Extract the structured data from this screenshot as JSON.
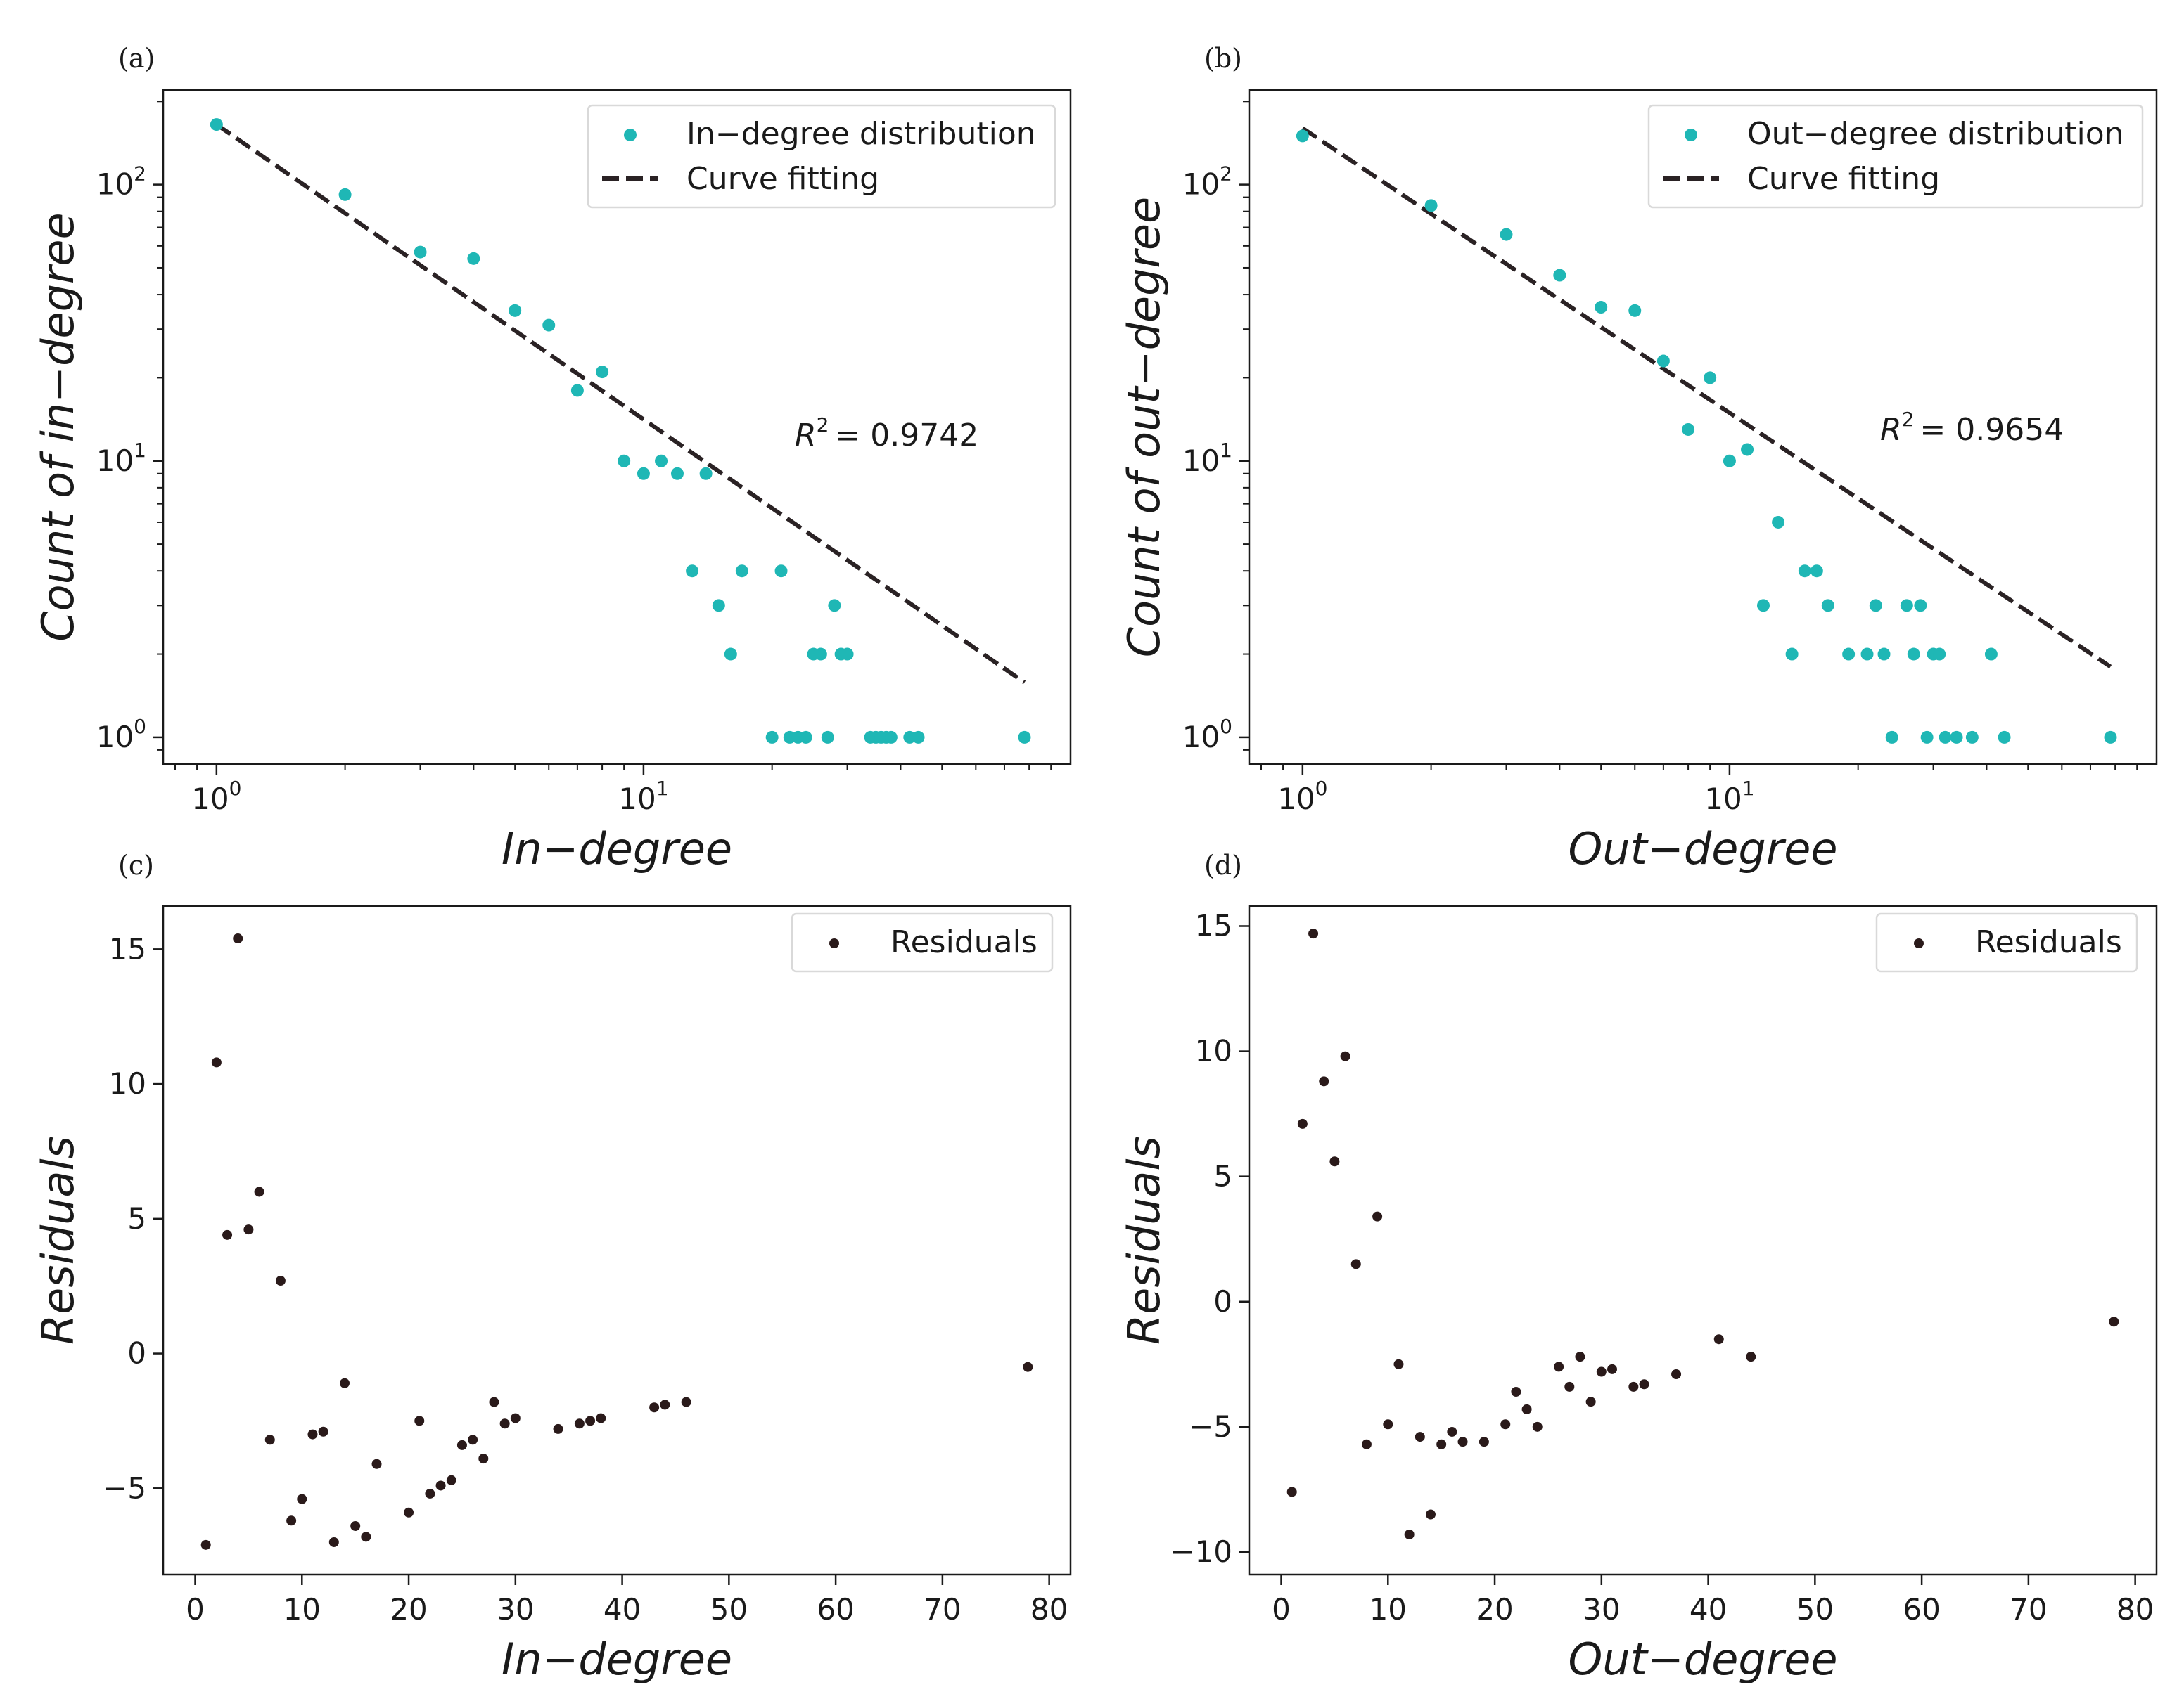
{
  "chart_data": [
    {
      "panel": "(a)",
      "type": "scatter",
      "xscale": "log",
      "yscale": "log",
      "xlim": [
        0.75,
        100
      ],
      "ylim": [
        0.8,
        220
      ],
      "xticks": [
        {
          "value": 1,
          "label": "10",
          "sup": "0"
        },
        {
          "value": 10,
          "label": "10",
          "sup": "1"
        }
      ],
      "yticks": [
        {
          "value": 1,
          "label": "10",
          "sup": "0"
        },
        {
          "value": 10,
          "label": "10",
          "sup": "1"
        },
        {
          "value": 100,
          "label": "10",
          "sup": "2"
        }
      ],
      "xlabel": "In−degree",
      "ylabel": "Count of in−degree",
      "legend": {
        "position": "top-right",
        "entries": [
          "In−degree distribution",
          "Curve fitting"
        ]
      },
      "annotation": {
        "r2_symbol": "R",
        "r2_sup": "2",
        "r2_value": "= 0.9742"
      },
      "fit_line": {
        "x": [
          1,
          78
        ],
        "y": [
          165,
          1.58
        ]
      },
      "series": [
        {
          "name": "In−degree distribution",
          "color": "#1fb7b5",
          "x": [
            1,
            2,
            3,
            4,
            5,
            6,
            7,
            8,
            9,
            10,
            11,
            12,
            13,
            14,
            15,
            16,
            17,
            20,
            21,
            22,
            23,
            24,
            25,
            26,
            27,
            28,
            29,
            30,
            34,
            35,
            36,
            37,
            38,
            42,
            44,
            78
          ],
          "y": [
            165,
            92,
            57,
            54,
            35,
            31,
            18,
            21,
            10,
            9,
            10,
            9,
            4,
            9,
            3,
            2,
            4,
            1,
            4,
            1,
            1,
            1,
            2,
            2,
            1,
            3,
            2,
            2,
            1,
            1,
            1,
            1,
            1,
            1,
            1,
            1
          ]
        }
      ]
    },
    {
      "panel": "(b)",
      "type": "scatter",
      "xscale": "log",
      "yscale": "log",
      "xlim": [
        0.75,
        100
      ],
      "ylim": [
        0.8,
        220
      ],
      "xticks": [
        {
          "value": 1,
          "label": "10",
          "sup": "0"
        },
        {
          "value": 10,
          "label": "10",
          "sup": "1"
        }
      ],
      "yticks": [
        {
          "value": 1,
          "label": "10",
          "sup": "0"
        },
        {
          "value": 10,
          "label": "10",
          "sup": "1"
        },
        {
          "value": 100,
          "label": "10",
          "sup": "2"
        }
      ],
      "xlabel": "Out−degree",
      "ylabel": "Count of out−degree",
      "legend": {
        "position": "top-right",
        "entries": [
          "Out−degree distribution",
          "Curve fitting"
        ]
      },
      "annotation": {
        "r2_symbol": "R",
        "r2_sup": "2",
        "r2_value": "= 0.9654"
      },
      "fit_line": {
        "x": [
          1,
          78
        ],
        "y": [
          160,
          1.8
        ]
      },
      "series": [
        {
          "name": "Out−degree distribution",
          "color": "#1fb7b5",
          "x": [
            1,
            2,
            3,
            4,
            5,
            6,
            7,
            8,
            9,
            10,
            11,
            12,
            13,
            14,
            15,
            16,
            17,
            19,
            21,
            22,
            23,
            24,
            26,
            27,
            28,
            29,
            30,
            31,
            32,
            34,
            37,
            41,
            44,
            78
          ],
          "y": [
            150,
            84,
            66,
            47,
            36,
            35,
            23,
            13,
            20,
            10,
            11,
            3,
            6,
            2,
            4,
            4,
            3,
            2,
            2,
            3,
            2,
            1,
            3,
            2,
            3,
            1,
            2,
            2,
            1,
            1,
            1,
            2,
            1,
            1
          ]
        }
      ]
    },
    {
      "panel": "(c)",
      "type": "scatter",
      "xscale": "linear",
      "yscale": "linear",
      "xlim": [
        -3,
        82
      ],
      "ylim": [
        -8.2,
        16.6
      ],
      "xticks": [
        0,
        10,
        20,
        30,
        40,
        50,
        60,
        70,
        80
      ],
      "yticks": [
        {
          "value": 15,
          "label": "15"
        },
        {
          "value": 10,
          "label": "10"
        },
        {
          "value": 5,
          "label": "5"
        },
        {
          "value": 0,
          "label": "0"
        },
        {
          "value": -5,
          "label": "−5"
        }
      ],
      "xlabel": "In−degree",
      "ylabel": "Residuals",
      "legend": {
        "position": "top-right",
        "entries": [
          "Residuals"
        ]
      },
      "series": [
        {
          "name": "Residuals",
          "color": "#2a1a1a",
          "x": [
            1,
            2,
            3,
            4,
            5,
            6,
            7,
            8,
            9,
            10,
            11,
            12,
            13,
            14,
            15,
            16,
            17,
            20,
            21,
            22,
            23,
            24,
            25,
            26,
            27,
            28,
            29,
            30,
            34,
            36,
            37,
            38,
            43,
            44,
            46,
            78
          ],
          "y": [
            -7.1,
            10.8,
            4.4,
            15.4,
            4.6,
            6.0,
            -3.2,
            2.7,
            -6.2,
            -5.4,
            -3.0,
            -2.9,
            -7.0,
            -1.1,
            -6.4,
            -6.8,
            -4.1,
            -5.9,
            -2.5,
            -5.2,
            -4.9,
            -4.7,
            -3.4,
            -3.2,
            -3.9,
            -1.8,
            -2.6,
            -2.4,
            -2.8,
            -2.6,
            -2.5,
            -2.4,
            -2.0,
            -1.9,
            -1.8,
            -0.5
          ]
        }
      ]
    },
    {
      "panel": "(d)",
      "type": "scatter",
      "xscale": "linear",
      "yscale": "linear",
      "xlim": [
        -3,
        82
      ],
      "ylim": [
        -10.9,
        15.8
      ],
      "xticks": [
        0,
        10,
        20,
        30,
        40,
        50,
        60,
        70,
        80
      ],
      "yticks": [
        {
          "value": 15,
          "label": "15"
        },
        {
          "value": 10,
          "label": "10"
        },
        {
          "value": 5,
          "label": "5"
        },
        {
          "value": 0,
          "label": "0"
        },
        {
          "value": -5,
          "label": "−5"
        },
        {
          "value": -10,
          "label": "−10"
        }
      ],
      "xlabel": "Out−degree",
      "ylabel": "Residuals",
      "legend": {
        "position": "top-right",
        "entries": [
          "Residuals"
        ]
      },
      "series": [
        {
          "name": "Residuals",
          "color": "#2a1a1a",
          "x": [
            1,
            2,
            3,
            4,
            5,
            6,
            7,
            8,
            9,
            10,
            11,
            12,
            13,
            14,
            15,
            16,
            17,
            19,
            21,
            22,
            23,
            24,
            26,
            27,
            28,
            29,
            30,
            31,
            33,
            34,
            37,
            41,
            44,
            78
          ],
          "y": [
            -7.6,
            7.1,
            14.7,
            8.8,
            5.6,
            9.8,
            1.5,
            -5.7,
            3.4,
            -4.9,
            -2.5,
            -9.3,
            -5.4,
            -8.5,
            -5.7,
            -5.2,
            -5.6,
            -5.6,
            -4.9,
            -3.6,
            -4.3,
            -5.0,
            -2.6,
            -3.4,
            -2.2,
            -4.0,
            -2.8,
            -2.7,
            -3.4,
            -3.3,
            -2.9,
            -1.5,
            -2.2,
            -0.8
          ]
        }
      ]
    }
  ]
}
